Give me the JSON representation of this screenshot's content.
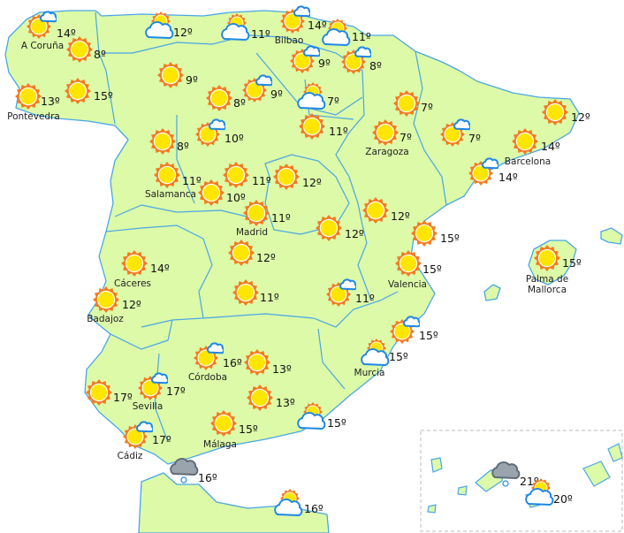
{
  "colors": {
    "land": "#dcfaa8",
    "border": "#4aa6e6",
    "sun_outer": "#f47a20",
    "sun_inner": "#ffe600",
    "cloud_stroke": "#1e88e5",
    "rain_cloud": "#9aa4ad"
  },
  "stations": [
    {
      "icon": "sun-cloud",
      "temp": "14º",
      "label": "A Coruña"
    },
    {
      "icon": "sun",
      "temp": "8º",
      "label": ""
    },
    {
      "icon": "sun",
      "temp": "13º",
      "label": "Pontevedra"
    },
    {
      "icon": "sun",
      "temp": "15º",
      "label": ""
    },
    {
      "icon": "cloud-sun",
      "temp": "12º",
      "label": ""
    },
    {
      "icon": "cloud-sun",
      "temp": "11º",
      "label": ""
    },
    {
      "icon": "sun-cloud",
      "temp": "14º",
      "label": "Bilbao"
    },
    {
      "icon": "cloud-sun",
      "temp": "11º",
      "label": ""
    },
    {
      "icon": "sun-cloud",
      "temp": "9º",
      "label": ""
    },
    {
      "icon": "sun-cloud",
      "temp": "8º",
      "label": ""
    },
    {
      "icon": "sun",
      "temp": "9º",
      "label": ""
    },
    {
      "icon": "sun",
      "temp": "8º",
      "label": ""
    },
    {
      "icon": "sun-cloud",
      "temp": "9º",
      "label": ""
    },
    {
      "icon": "cloud-sun",
      "temp": "7º",
      "label": ""
    },
    {
      "icon": "sun",
      "temp": "8º",
      "label": ""
    },
    {
      "icon": "sun-cloud",
      "temp": "10º",
      "label": ""
    },
    {
      "icon": "sun",
      "temp": "11º",
      "label": ""
    },
    {
      "icon": "sun",
      "temp": "7º",
      "label": ""
    },
    {
      "icon": "sun",
      "temp": "7º",
      "label": "Zaragoza"
    },
    {
      "icon": "sun-cloud",
      "temp": "7º",
      "label": ""
    },
    {
      "icon": "sun",
      "temp": "12º",
      "label": ""
    },
    {
      "icon": "sun",
      "temp": "14º",
      "label": "Barcelona"
    },
    {
      "icon": "sun-cloud",
      "temp": "14º",
      "label": ""
    },
    {
      "icon": "sun",
      "temp": "11º",
      "label": "Salamanca"
    },
    {
      "icon": "sun",
      "temp": "10º",
      "label": ""
    },
    {
      "icon": "sun",
      "temp": "11º",
      "label": ""
    },
    {
      "icon": "sun",
      "temp": "12º",
      "label": ""
    },
    {
      "icon": "sun",
      "temp": "11º",
      "label": "Madrid"
    },
    {
      "icon": "sun",
      "temp": "12º",
      "label": ""
    },
    {
      "icon": "sun",
      "temp": "12º",
      "label": ""
    },
    {
      "icon": "sun",
      "temp": "15º",
      "label": ""
    },
    {
      "icon": "sun",
      "temp": "15º",
      "label": "Valencia"
    },
    {
      "icon": "sun",
      "temp": "15º",
      "label": "Palma de Mallorca"
    },
    {
      "icon": "sun",
      "temp": "14º",
      "label": "Cáceres"
    },
    {
      "icon": "sun",
      "temp": "12º",
      "label": "Badajoz"
    },
    {
      "icon": "sun",
      "temp": "12º",
      "label": ""
    },
    {
      "icon": "sun",
      "temp": "11º",
      "label": ""
    },
    {
      "icon": "sun-cloud",
      "temp": "11º",
      "label": ""
    },
    {
      "icon": "sun-cloud",
      "temp": "15º",
      "label": ""
    },
    {
      "icon": "cloud-sun",
      "temp": "15º",
      "label": "Murcia"
    },
    {
      "icon": "sun-cloud",
      "temp": "16º",
      "label": "Córdoba"
    },
    {
      "icon": "sun",
      "temp": "13º",
      "label": ""
    },
    {
      "icon": "sun",
      "temp": "17º",
      "label": ""
    },
    {
      "icon": "sun-cloud",
      "temp": "17º",
      "label": "Sevilla"
    },
    {
      "icon": "sun",
      "temp": "13º",
      "label": ""
    },
    {
      "icon": "cloud-sun",
      "temp": "15º",
      "label": ""
    },
    {
      "icon": "sun",
      "temp": "15º",
      "label": "Málaga"
    },
    {
      "icon": "sun-cloud",
      "temp": "17º",
      "label": "Cádiz"
    },
    {
      "icon": "rain",
      "temp": "16º",
      "label": ""
    },
    {
      "icon": "cloud-sun",
      "temp": "16º",
      "label": ""
    },
    {
      "icon": "rain",
      "temp": "21º",
      "label": ""
    },
    {
      "icon": "cloud-sun",
      "temp": "20º",
      "label": ""
    }
  ]
}
